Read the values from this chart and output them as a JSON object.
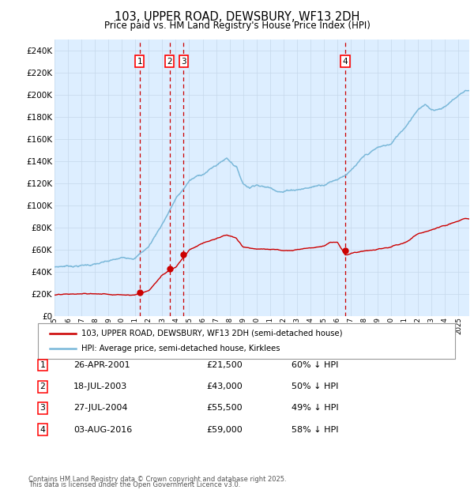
{
  "title": "103, UPPER ROAD, DEWSBURY, WF13 2DH",
  "subtitle": "Price paid vs. HM Land Registry's House Price Index (HPI)",
  "legend_line1": "103, UPPER ROAD, DEWSBURY, WF13 2DH (semi-detached house)",
  "legend_line2": "HPI: Average price, semi-detached house, Kirklees",
  "footer1": "Contains HM Land Registry data © Crown copyright and database right 2025.",
  "footer2": "This data is licensed under the Open Government Licence v3.0.",
  "hpi_color": "#7ab8d9",
  "price_color": "#cc0000",
  "vline_color": "#cc0000",
  "bg_color": "#ddeeff",
  "plot_bg": "#ffffff",
  "grid_color": "#c5d8ea",
  "purchases": [
    {
      "num": 1,
      "date_label": "26-APR-2001",
      "price": 21500,
      "year": 2001.32,
      "pct": "60% ↓ HPI"
    },
    {
      "num": 2,
      "date_label": "18-JUL-2003",
      "price": 43000,
      "year": 2003.54,
      "pct": "50% ↓ HPI"
    },
    {
      "num": 3,
      "date_label": "27-JUL-2004",
      "price": 55500,
      "year": 2004.57,
      "pct": "49% ↓ HPI"
    },
    {
      "num": 4,
      "date_label": "03-AUG-2016",
      "price": 59000,
      "year": 2016.59,
      "pct": "58% ↓ HPI"
    }
  ],
  "ylim": [
    0,
    250000
  ],
  "ytick_vals": [
    0,
    20000,
    40000,
    60000,
    80000,
    100000,
    120000,
    140000,
    160000,
    180000,
    200000,
    220000,
    240000
  ],
  "xmin": 1995.0,
  "xmax": 2025.8,
  "hpi_waypoints": [
    [
      1995.0,
      44000
    ],
    [
      1996.0,
      45500
    ],
    [
      1997.0,
      46500
    ],
    [
      1998.0,
      48000
    ],
    [
      1999.0,
      49500
    ],
    [
      2000.0,
      51500
    ],
    [
      2001.0,
      54000
    ],
    [
      2002.0,
      64000
    ],
    [
      2003.0,
      85000
    ],
    [
      2004.0,
      108000
    ],
    [
      2004.5,
      115000
    ],
    [
      2005.0,
      124000
    ],
    [
      2006.0,
      130000
    ],
    [
      2007.0,
      138000
    ],
    [
      2007.8,
      145000
    ],
    [
      2008.5,
      138000
    ],
    [
      2009.0,
      123000
    ],
    [
      2009.5,
      120000
    ],
    [
      2010.0,
      124000
    ],
    [
      2010.5,
      122000
    ],
    [
      2011.0,
      121000
    ],
    [
      2011.5,
      120000
    ],
    [
      2012.0,
      119000
    ],
    [
      2012.5,
      121000
    ],
    [
      2013.0,
      122000
    ],
    [
      2014.0,
      124000
    ],
    [
      2015.0,
      128000
    ],
    [
      2016.0,
      134000
    ],
    [
      2016.5,
      138000
    ],
    [
      2017.0,
      142000
    ],
    [
      2018.0,
      153000
    ],
    [
      2019.0,
      160000
    ],
    [
      2020.0,
      163000
    ],
    [
      2021.0,
      178000
    ],
    [
      2022.0,
      197000
    ],
    [
      2022.5,
      200000
    ],
    [
      2023.0,
      196000
    ],
    [
      2023.5,
      197000
    ],
    [
      2024.0,
      200000
    ],
    [
      2024.5,
      205000
    ],
    [
      2025.5,
      215000
    ]
  ],
  "price_waypoints": [
    [
      1995.0,
      19000
    ],
    [
      1996.0,
      19000
    ],
    [
      1997.0,
      19200
    ],
    [
      1998.0,
      19200
    ],
    [
      1999.0,
      19200
    ],
    [
      2000.0,
      19500
    ],
    [
      2001.0,
      20000
    ],
    [
      2001.32,
      21500
    ],
    [
      2002.0,
      24000
    ],
    [
      2003.0,
      38000
    ],
    [
      2003.54,
      43000
    ],
    [
      2004.0,
      46000
    ],
    [
      2004.57,
      55500
    ],
    [
      2005.0,
      62000
    ],
    [
      2006.0,
      68000
    ],
    [
      2007.0,
      71000
    ],
    [
      2007.8,
      74000
    ],
    [
      2008.5,
      71000
    ],
    [
      2009.0,
      63000
    ],
    [
      2010.0,
      62000
    ],
    [
      2011.0,
      61000
    ],
    [
      2012.0,
      60000
    ],
    [
      2013.0,
      61500
    ],
    [
      2014.0,
      63000
    ],
    [
      2015.0,
      66000
    ],
    [
      2015.5,
      70000
    ],
    [
      2016.0,
      70000
    ],
    [
      2016.59,
      59000
    ],
    [
      2017.0,
      60000
    ],
    [
      2018.0,
      62000
    ],
    [
      2019.0,
      63000
    ],
    [
      2020.0,
      65000
    ],
    [
      2021.0,
      68000
    ],
    [
      2022.0,
      76000
    ],
    [
      2023.0,
      80000
    ],
    [
      2024.0,
      83000
    ],
    [
      2025.5,
      88000
    ]
  ]
}
